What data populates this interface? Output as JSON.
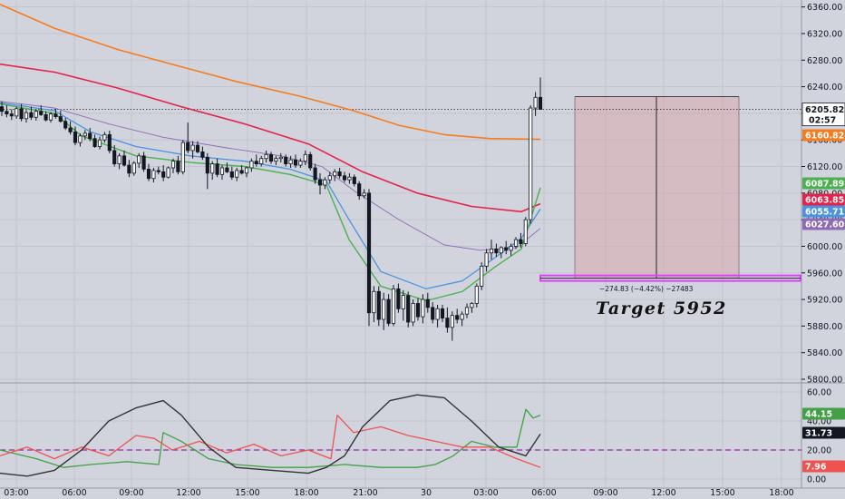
{
  "colors": {
    "background": "#d1d4dc",
    "grid": "#c2c5cd",
    "candle_up": "#ffffff",
    "candle_down": "#131722",
    "ema_orange": "#f57c1f",
    "ema_red": "#e5224a",
    "ema_purple": "#8e6bb5",
    "ema_blue": "#4b93e0",
    "ema_green": "#4caf50",
    "zone_fill": "#d9a5ad",
    "target_line": "#e040fb",
    "stoch_black": "#333333",
    "rsi_red": "#ef5350",
    "osc_green": "#43a047",
    "mid_dash": "#9c27b0"
  },
  "chart_data": [
    {
      "type": "candlestick",
      "title": "",
      "grid": true,
      "x_tick_labels": [
        "03:00",
        "06:00",
        "09:00",
        "12:00",
        "15:00",
        "18:00",
        "21:00",
        "30",
        "03:00",
        "06:00",
        "09:00",
        "12:00",
        "15:00",
        "18:00"
      ],
      "y_tick_labels": [
        "6360.00",
        "6320.00",
        "6280.00",
        "6240.00",
        "6200.00",
        "6160.00",
        "6120.00",
        "6080.00",
        "6040.00",
        "6000.00",
        "5960.00",
        "5920.00",
        "5880.00",
        "5840.00",
        "5800.00"
      ],
      "ylim": [
        5800,
        6365
      ],
      "last_price": "6205.82",
      "countdown": "02:57",
      "price_labels": [
        {
          "value": "6205.82",
          "color": "#131722"
        },
        {
          "value": "6160.82",
          "color": "#f57c1f"
        },
        {
          "value": "6087.89",
          "color": "#4caf50"
        },
        {
          "value": "6063.85",
          "color": "#e5224a"
        },
        {
          "value": "6055.71",
          "color": "#4b93e0"
        },
        {
          "value": "6027.60",
          "color": "#8e6bb5"
        }
      ],
      "measure_label": "−274.83 (−4.42%) −27483",
      "annotation": "Target 5952",
      "target_level": 5952,
      "measure_top": 6225,
      "candles_ohlc": [
        [
          6210,
          6218,
          6196,
          6203
        ],
        [
          6203,
          6212,
          6194,
          6199
        ],
        [
          6199,
          6206,
          6190,
          6196
        ],
        [
          6196,
          6210,
          6192,
          6207
        ],
        [
          6207,
          6214,
          6188,
          6192
        ],
        [
          6192,
          6205,
          6186,
          6201
        ],
        [
          6201,
          6210,
          6190,
          6194
        ],
        [
          6194,
          6206,
          6189,
          6203
        ],
        [
          6203,
          6212,
          6196,
          6198
        ],
        [
          6198,
          6203,
          6188,
          6190
        ],
        [
          6190,
          6202,
          6186,
          6199
        ],
        [
          6199,
          6207,
          6192,
          6195
        ],
        [
          6195,
          6204,
          6186,
          6188
        ],
        [
          6188,
          6193,
          6175,
          6178
        ],
        [
          6178,
          6188,
          6168,
          6172
        ],
        [
          6172,
          6180,
          6152,
          6156
        ],
        [
          6156,
          6170,
          6150,
          6166
        ],
        [
          6166,
          6175,
          6160,
          6170
        ],
        [
          6170,
          6178,
          6158,
          6162
        ],
        [
          6162,
          6168,
          6148,
          6150
        ],
        [
          6150,
          6165,
          6146,
          6160
        ],
        [
          6160,
          6172,
          6156,
          6168
        ],
        [
          6168,
          6174,
          6140,
          6144
        ],
        [
          6144,
          6152,
          6120,
          6124
        ],
        [
          6124,
          6140,
          6116,
          6136
        ],
        [
          6136,
          6144,
          6120,
          6122
        ],
        [
          6122,
          6130,
          6104,
          6110
        ],
        [
          6110,
          6128,
          6106,
          6125
        ],
        [
          6125,
          6140,
          6118,
          6136
        ],
        [
          6136,
          6142,
          6112,
          6116
        ],
        [
          6116,
          6124,
          6098,
          6102
        ],
        [
          6102,
          6118,
          6096,
          6114
        ],
        [
          6114,
          6120,
          6108,
          6112
        ],
        [
          6112,
          6122,
          6098,
          6104
        ],
        [
          6104,
          6120,
          6102,
          6118
        ],
        [
          6118,
          6132,
          6110,
          6128
        ],
        [
          6128,
          6136,
          6108,
          6112
        ],
        [
          6112,
          6160,
          6108,
          6156
        ],
        [
          6156,
          6186,
          6140,
          6144
        ],
        [
          6144,
          6158,
          6132,
          6152
        ],
        [
          6152,
          6158,
          6140,
          6142
        ],
        [
          6142,
          6150,
          6130,
          6134
        ],
        [
          6134,
          6140,
          6086,
          6110
        ],
        [
          6110,
          6128,
          6100,
          6124
        ],
        [
          6124,
          6132,
          6104,
          6108
        ],
        [
          6108,
          6122,
          6100,
          6118
        ],
        [
          6118,
          6126,
          6110,
          6112
        ],
        [
          6112,
          6120,
          6100,
          6104
        ],
        [
          6104,
          6118,
          6098,
          6114
        ],
        [
          6114,
          6122,
          6108,
          6110
        ],
        [
          6110,
          6120,
          6104,
          6118
        ],
        [
          6118,
          6132,
          6112,
          6128
        ],
        [
          6128,
          6138,
          6120,
          6124
        ],
        [
          6124,
          6136,
          6120,
          6132
        ],
        [
          6132,
          6144,
          6126,
          6138
        ],
        [
          6138,
          6142,
          6124,
          6128
        ],
        [
          6128,
          6136,
          6122,
          6132
        ],
        [
          6132,
          6140,
          6126,
          6134
        ],
        [
          6134,
          6138,
          6120,
          6124
        ],
        [
          6124,
          6136,
          6118,
          6130
        ],
        [
          6130,
          6138,
          6118,
          6122
        ],
        [
          6122,
          6132,
          6118,
          6128
        ],
        [
          6128,
          6144,
          6122,
          6138
        ],
        [
          6138,
          6142,
          6114,
          6118
        ],
        [
          6118,
          6124,
          6094,
          6100
        ],
        [
          6100,
          6110,
          6078,
          6092
        ],
        [
          6092,
          6104,
          6086,
          6100
        ],
        [
          6100,
          6112,
          6094,
          6106
        ],
        [
          6106,
          6116,
          6098,
          6112
        ],
        [
          6112,
          6118,
          6102,
          6106
        ],
        [
          6106,
          6112,
          6096,
          6100
        ],
        [
          6100,
          6110,
          6094,
          6104
        ],
        [
          6104,
          6108,
          6090,
          6094
        ],
        [
          6094,
          6098,
          6070,
          6076
        ],
        [
          6076,
          6086,
          6072,
          6080
        ],
        [
          6080,
          6086,
          5880,
          5900
        ],
        [
          5900,
          5940,
          5886,
          5932
        ],
        [
          5932,
          5940,
          5880,
          5890
        ],
        [
          5890,
          5930,
          5874,
          5920
        ],
        [
          5920,
          5928,
          5880,
          5884
        ],
        [
          5884,
          5942,
          5880,
          5936
        ],
        [
          5936,
          5944,
          5900,
          5906
        ],
        [
          5906,
          5934,
          5888,
          5926
        ],
        [
          5926,
          5932,
          5878,
          5886
        ],
        [
          5886,
          5920,
          5880,
          5914
        ],
        [
          5914,
          5922,
          5888,
          5894
        ],
        [
          5894,
          5928,
          5884,
          5920
        ],
        [
          5920,
          5930,
          5900,
          5908
        ],
        [
          5908,
          5916,
          5884,
          5890
        ],
        [
          5890,
          5912,
          5878,
          5906
        ],
        [
          5906,
          5912,
          5886,
          5892
        ],
        [
          5892,
          5908,
          5870,
          5878
        ],
        [
          5878,
          5902,
          5858,
          5896
        ],
        [
          5896,
          5906,
          5884,
          5890
        ],
        [
          5890,
          5902,
          5880,
          5898
        ],
        [
          5898,
          5914,
          5892,
          5908
        ],
        [
          5908,
          5916,
          5900,
          5914
        ],
        [
          5914,
          5944,
          5908,
          5940
        ],
        [
          5940,
          5976,
          5934,
          5970
        ],
        [
          5970,
          5996,
          5962,
          5990
        ],
        [
          5990,
          6010,
          5980,
          5996
        ],
        [
          5996,
          6004,
          5984,
          5990
        ],
        [
          5990,
          6000,
          5982,
          5998
        ],
        [
          5998,
          6008,
          5988,
          5994
        ],
        [
          5994,
          6004,
          5986,
          6000
        ],
        [
          6000,
          6014,
          5996,
          6010
        ],
        [
          6010,
          6020,
          5998,
          6004
        ],
        [
          6004,
          6044,
          6000,
          6040
        ],
        [
          6040,
          6212,
          6034,
          6208
        ],
        [
          6208,
          6232,
          6196,
          6224
        ],
        [
          6224,
          6254,
          6206,
          6206
        ]
      ],
      "ema_orange": [
        [
          0,
          6364
        ],
        [
          60,
          6328
        ],
        [
          130,
          6296
        ],
        [
          200,
          6270
        ],
        [
          260,
          6248
        ],
        [
          330,
          6226
        ],
        [
          390,
          6204
        ],
        [
          440,
          6182
        ],
        [
          490,
          6168
        ],
        [
          540,
          6162
        ],
        [
          596,
          6161
        ]
      ],
      "ema_red": [
        [
          0,
          6274
        ],
        [
          60,
          6262
        ],
        [
          130,
          6238
        ],
        [
          200,
          6210
        ],
        [
          270,
          6184
        ],
        [
          340,
          6154
        ],
        [
          400,
          6112
        ],
        [
          460,
          6080
        ],
        [
          520,
          6060
        ],
        [
          575,
          6052
        ],
        [
          596,
          6064
        ]
      ],
      "ema_purple": [
        [
          0,
          6218
        ],
        [
          60,
          6208
        ],
        [
          120,
          6184
        ],
        [
          180,
          6164
        ],
        [
          250,
          6148
        ],
        [
          310,
          6136
        ],
        [
          355,
          6120
        ],
        [
          390,
          6084
        ],
        [
          440,
          6040
        ],
        [
          490,
          6002
        ],
        [
          530,
          5994
        ],
        [
          570,
          5998
        ],
        [
          596,
          6027
        ]
      ],
      "ema_blue": [
        [
          0,
          6216
        ],
        [
          60,
          6204
        ],
        [
          100,
          6172
        ],
        [
          150,
          6150
        ],
        [
          210,
          6136
        ],
        [
          270,
          6128
        ],
        [
          320,
          6116
        ],
        [
          360,
          6098
        ],
        [
          385,
          6040
        ],
        [
          420,
          5962
        ],
        [
          470,
          5936
        ],
        [
          510,
          5948
        ],
        [
          545,
          5982
        ],
        [
          575,
          6012
        ],
        [
          596,
          6056
        ]
      ],
      "ema_green": [
        [
          0,
          6214
        ],
        [
          60,
          6200
        ],
        [
          90,
          6166
        ],
        [
          150,
          6136
        ],
        [
          210,
          6126
        ],
        [
          270,
          6120
        ],
        [
          320,
          6108
        ],
        [
          360,
          6092
        ],
        [
          385,
          6010
        ],
        [
          420,
          5940
        ],
        [
          470,
          5918
        ],
        [
          510,
          5932
        ],
        [
          545,
          5968
        ],
        [
          575,
          5996
        ],
        [
          596,
          6088
        ]
      ],
      "osc_axis_ticks": [
        "60.00",
        "40.00",
        "20.00",
        "0.00"
      ],
      "osc_labels": [
        {
          "value": "44.15",
          "color": "#43a047"
        },
        {
          "value": "31.73",
          "color": "#131722"
        },
        {
          "value": "7.96",
          "color": "#ef5350"
        }
      ],
      "osc_black": [
        [
          0,
          4
        ],
        [
          30,
          2
        ],
        [
          60,
          6
        ],
        [
          90,
          20
        ],
        [
          120,
          40
        ],
        [
          150,
          49
        ],
        [
          180,
          54
        ],
        [
          200,
          44
        ],
        [
          230,
          22
        ],
        [
          260,
          8
        ],
        [
          300,
          6
        ],
        [
          340,
          4
        ],
        [
          360,
          8
        ],
        [
          380,
          16
        ],
        [
          400,
          36
        ],
        [
          430,
          54
        ],
        [
          460,
          58
        ],
        [
          490,
          56
        ],
        [
          520,
          40
        ],
        [
          550,
          22
        ],
        [
          580,
          16
        ],
        [
          596,
          31
        ]
      ],
      "osc_red": [
        [
          0,
          16
        ],
        [
          30,
          22
        ],
        [
          60,
          14
        ],
        [
          90,
          22
        ],
        [
          120,
          16
        ],
        [
          150,
          30
        ],
        [
          170,
          28
        ],
        [
          190,
          20
        ],
        [
          220,
          26
        ],
        [
          250,
          18
        ],
        [
          280,
          24
        ],
        [
          310,
          16
        ],
        [
          340,
          20
        ],
        [
          365,
          14
        ],
        [
          372,
          44
        ],
        [
          390,
          32
        ],
        [
          420,
          36
        ],
        [
          450,
          30
        ],
        [
          480,
          26
        ],
        [
          510,
          22
        ],
        [
          540,
          22
        ],
        [
          570,
          14
        ],
        [
          596,
          8
        ]
      ],
      "osc_green": [
        [
          0,
          20
        ],
        [
          40,
          14
        ],
        [
          70,
          8
        ],
        [
          100,
          10
        ],
        [
          140,
          12
        ],
        [
          175,
          10
        ],
        [
          180,
          32
        ],
        [
          200,
          26
        ],
        [
          230,
          14
        ],
        [
          260,
          10
        ],
        [
          300,
          8
        ],
        [
          340,
          8
        ],
        [
          380,
          10
        ],
        [
          420,
          8
        ],
        [
          460,
          8
        ],
        [
          480,
          10
        ],
        [
          500,
          16
        ],
        [
          520,
          26
        ],
        [
          545,
          22
        ],
        [
          570,
          22
        ],
        [
          580,
          48
        ],
        [
          588,
          42
        ],
        [
          596,
          44
        ]
      ]
    }
  ]
}
